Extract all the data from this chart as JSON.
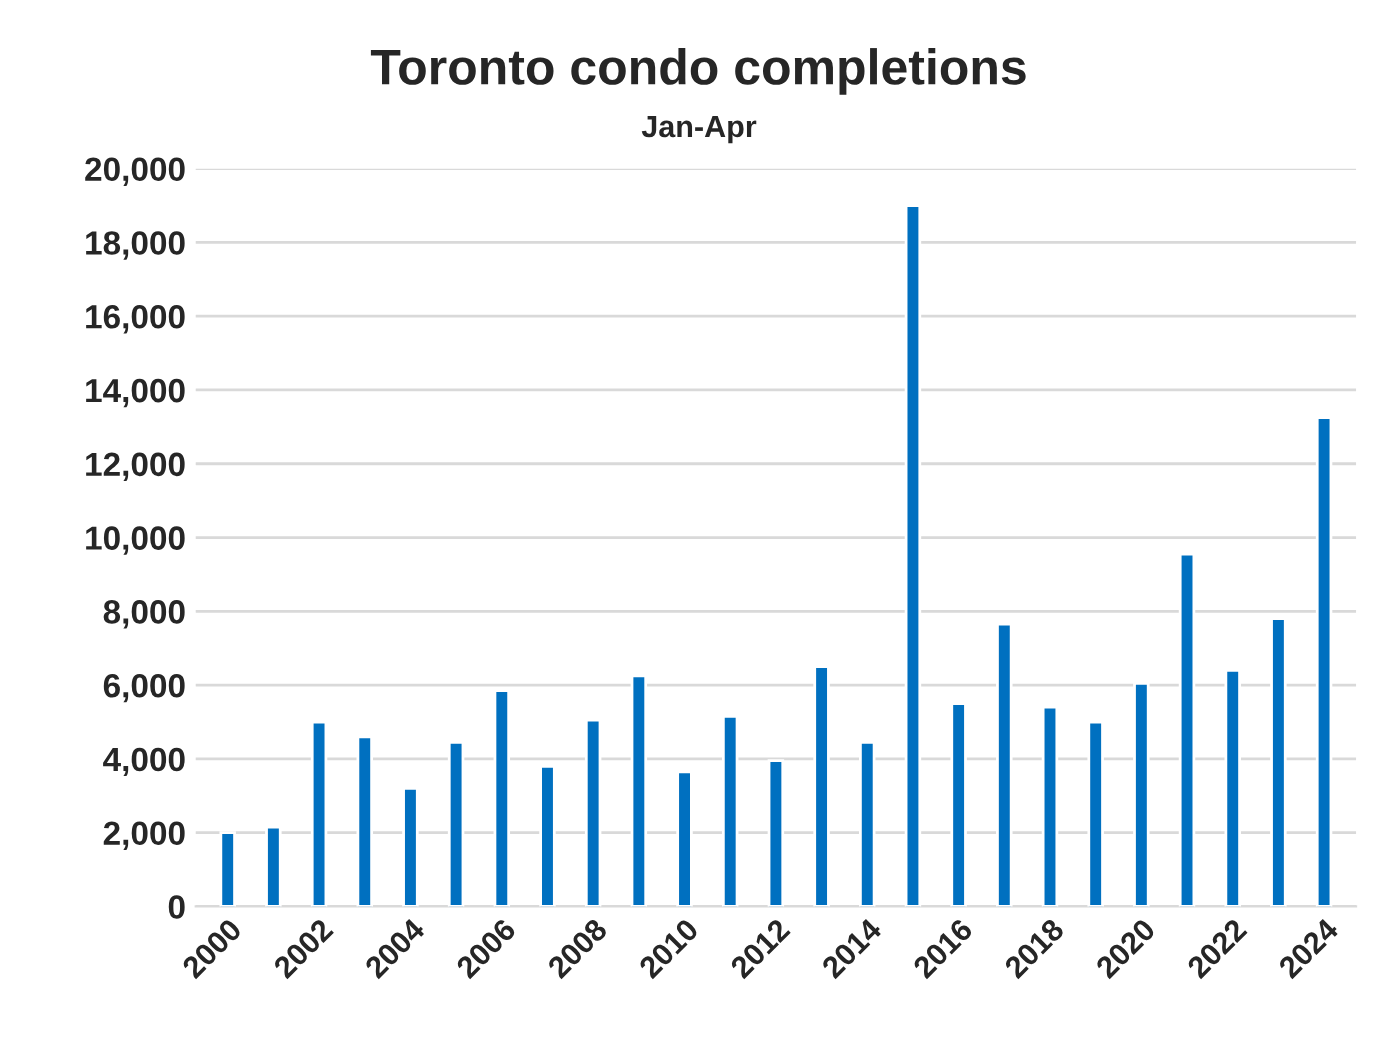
{
  "chart_data": {
    "type": "bar",
    "title": "Toronto condo completions",
    "subtitle": "Jan-Apr",
    "categories": [
      "2000",
      null,
      "2002",
      null,
      "2004",
      null,
      "2006",
      null,
      "2008",
      null,
      "2010",
      null,
      "2012",
      null,
      "2014",
      null,
      "2016",
      null,
      "2018",
      null,
      "2020",
      null,
      "2022",
      null,
      "2024"
    ],
    "values": [
      2000,
      2150,
      5000,
      4600,
      3200,
      4450,
      5850,
      3800,
      5050,
      6250,
      3650,
      5150,
      3950,
      6500,
      4450,
      19000,
      5500,
      7650,
      5400,
      5000,
      6050,
      9550,
      6400,
      7800,
      13250
    ],
    "color": "#0070c0",
    "ylim": [
      0,
      20000
    ],
    "yticks": [
      {
        "value": 0,
        "label": "0"
      },
      {
        "value": 2000,
        "label": "2,000"
      },
      {
        "value": 4000,
        "label": "4,000"
      },
      {
        "value": 6000,
        "label": "6,000"
      },
      {
        "value": 8000,
        "label": "8,000"
      },
      {
        "value": 10000,
        "label": "10,000"
      },
      {
        "value": 12000,
        "label": "12,000"
      },
      {
        "value": 14000,
        "label": "14,000"
      },
      {
        "value": 16000,
        "label": "16,000"
      },
      {
        "value": 18000,
        "label": "18,000"
      },
      {
        "value": 20000,
        "label": "20,000"
      }
    ],
    "grid": "y"
  }
}
